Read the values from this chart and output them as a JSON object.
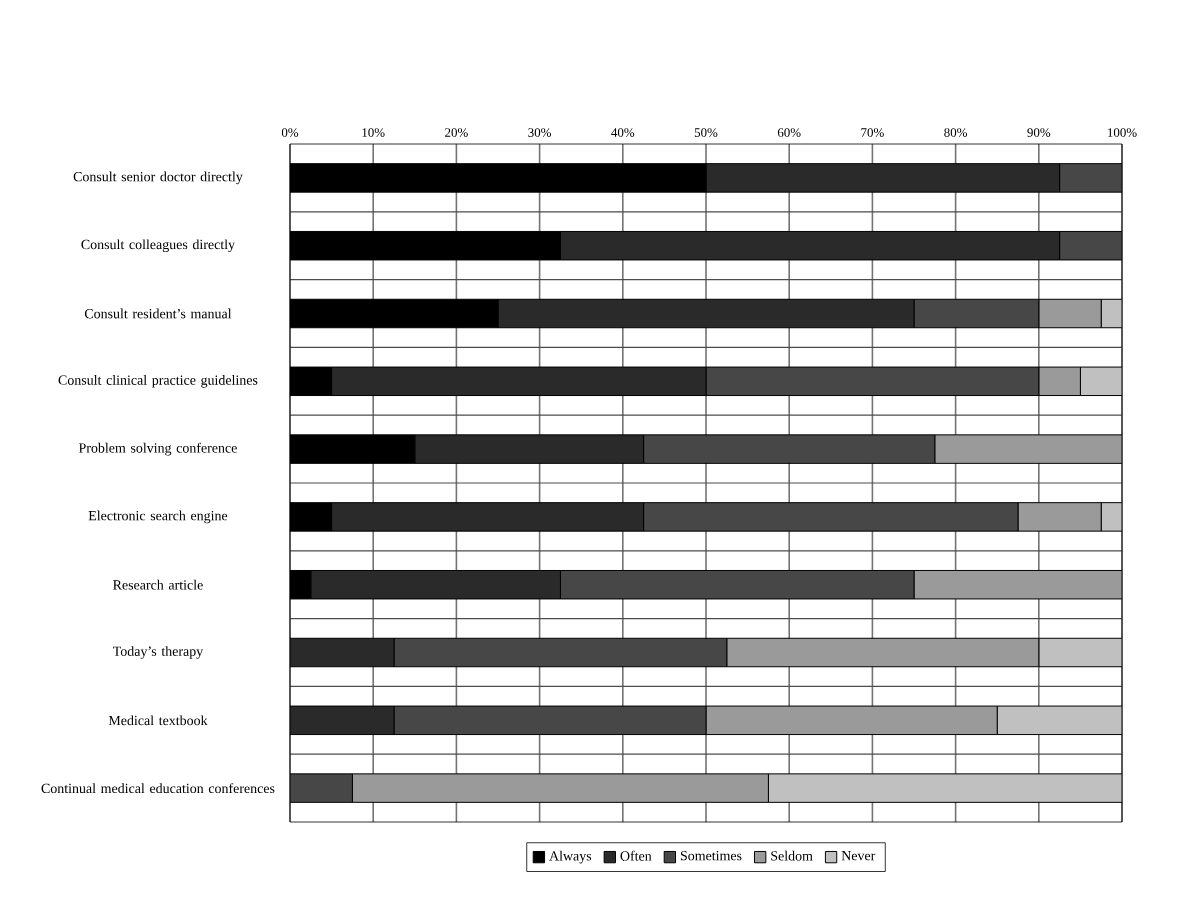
{
  "chart_data": {
    "type": "bar",
    "orientation": "horizontal",
    "stacked": true,
    "grid": true,
    "legend": "bottom",
    "categories": [
      "Consult senior doctor directly",
      "Consult colleagues directly",
      "Consult resident’s manual",
      "Consult clinical practice guidelines",
      "Problem solving conference",
      "Electronic search engine",
      "Research article",
      "Today’s therapy",
      "Medical textbook",
      "Continual medical education conferences"
    ],
    "xlim": [
      0,
      100
    ],
    "xticks": [
      {
        "value": 0,
        "label": "0%"
      },
      {
        "value": 10,
        "label": "10%"
      },
      {
        "value": 20,
        "label": "20%"
      },
      {
        "value": 30,
        "label": "30%"
      },
      {
        "value": 40,
        "label": "40%"
      },
      {
        "value": 50,
        "label": "50%"
      },
      {
        "value": 60,
        "label": "60%"
      },
      {
        "value": 70,
        "label": "70%"
      },
      {
        "value": 80,
        "label": "80%"
      },
      {
        "value": 90,
        "label": "90%"
      },
      {
        "value": 100,
        "label": "100%"
      }
    ],
    "series": [
      {
        "name": "Always",
        "color": "#000000",
        "values": [
          50,
          32.5,
          25,
          5,
          15,
          5,
          2.5,
          0,
          0,
          0
        ]
      },
      {
        "name": "Often",
        "color": "#2a2a2a",
        "values": [
          42.5,
          60,
          50,
          45,
          27.5,
          37.5,
          30,
          12.5,
          12.5,
          0
        ]
      },
      {
        "name": "Sometimes",
        "color": "#474747",
        "values": [
          7.5,
          7.5,
          15,
          40,
          35,
          45,
          42.5,
          40,
          37.5,
          7.5
        ]
      },
      {
        "name": "Seldom",
        "color": "#9a9a9a",
        "values": [
          0,
          0,
          7.5,
          5,
          22.5,
          10,
          25,
          37.5,
          35,
          50
        ]
      },
      {
        "name": "Never",
        "color": "#c0c0c0",
        "values": [
          0,
          0,
          2.5,
          5,
          0,
          2.5,
          0,
          10,
          15,
          42.5
        ]
      }
    ]
  }
}
